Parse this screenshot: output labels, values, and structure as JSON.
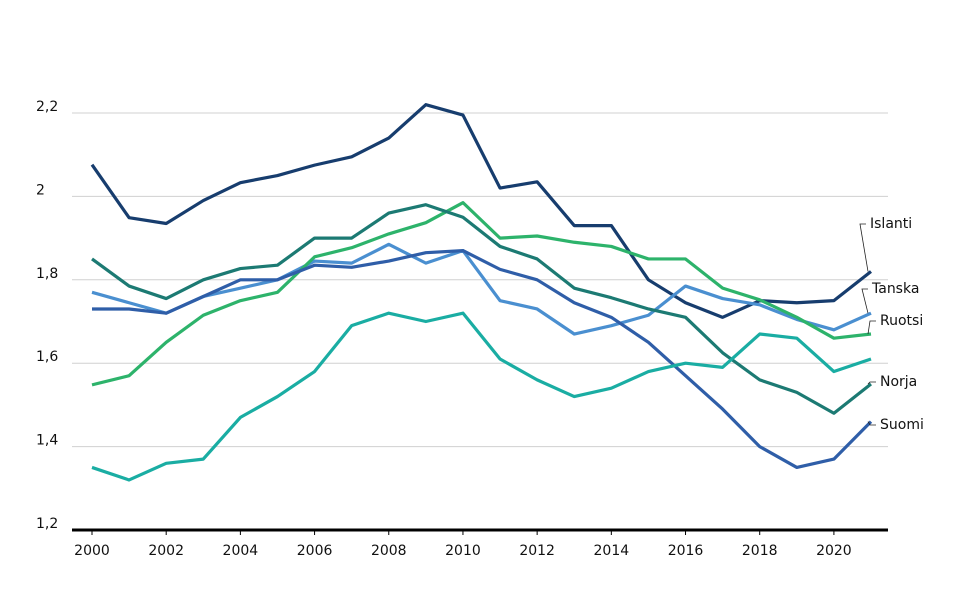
{
  "chart_data": {
    "type": "line",
    "x": [
      2000,
      2001,
      2002,
      2003,
      2004,
      2005,
      2006,
      2007,
      2008,
      2009,
      2010,
      2011,
      2012,
      2013,
      2014,
      2015,
      2016,
      2017,
      2018,
      2019,
      2020,
      2021
    ],
    "xlim": [
      2000,
      2021
    ],
    "xticks": [
      2000,
      2002,
      2004,
      2006,
      2008,
      2010,
      2012,
      2014,
      2016,
      2018,
      2020
    ],
    "ylim": [
      1.2,
      2.2
    ],
    "yticks": [
      {
        "value": 1.2,
        "label": "1,2"
      },
      {
        "value": 1.4,
        "label": "1,4"
      },
      {
        "value": 1.6,
        "label": "1,6"
      },
      {
        "value": 1.8,
        "label": "1,8"
      },
      2,
      {
        "value": 2.2,
        "label": "2,2"
      }
    ],
    "grid": true,
    "series": [
      {
        "name": "Islanti",
        "color": "#173d6e",
        "values": [
          2.076,
          1.949,
          1.935,
          1.99,
          2.033,
          2.05,
          2.075,
          2.095,
          2.14,
          2.22,
          2.195,
          2.02,
          2.035,
          1.93,
          1.93,
          1.8,
          1.745,
          1.71,
          1.75,
          1.745,
          1.75,
          1.82
        ]
      },
      {
        "name": "Tanska",
        "color": "#4a8fd0",
        "values": [
          1.77,
          1.745,
          1.72,
          1.76,
          1.78,
          1.8,
          1.845,
          1.84,
          1.885,
          1.84,
          1.87,
          1.75,
          1.73,
          1.67,
          1.69,
          1.715,
          1.785,
          1.755,
          1.74,
          1.705,
          1.68,
          1.72
        ]
      },
      {
        "name": "Ruotsi",
        "color": "#2db36b",
        "values": [
          1.548,
          1.57,
          1.65,
          1.715,
          1.75,
          1.77,
          1.855,
          1.877,
          1.91,
          1.937,
          1.985,
          1.9,
          1.905,
          1.89,
          1.88,
          1.85,
          1.85,
          1.78,
          1.752,
          1.71,
          1.66,
          1.67
        ]
      },
      {
        "name": "Norja",
        "color": "#1c7a73",
        "values": [
          1.85,
          1.785,
          1.755,
          1.8,
          1.827,
          1.835,
          1.9,
          1.9,
          1.96,
          1.98,
          1.95,
          1.88,
          1.85,
          1.78,
          1.757,
          1.73,
          1.71,
          1.625,
          1.56,
          1.53,
          1.48,
          1.55
        ]
      },
      {
        "name": "Suomi",
        "color": "#2f5ea8",
        "values": [
          1.73,
          1.73,
          1.72,
          1.76,
          1.8,
          1.8,
          1.835,
          1.83,
          1.845,
          1.865,
          1.87,
          1.825,
          1.8,
          1.745,
          1.71,
          1.65,
          1.57,
          1.49,
          1.4,
          1.35,
          1.37,
          1.46
        ]
      },
      {
        "color": "#1aada3",
        "values": [
          1.35,
          1.32,
          1.36,
          1.37,
          1.47,
          1.52,
          1.58,
          1.69,
          1.72,
          1.7,
          1.72,
          1.61,
          1.56,
          1.52,
          1.54,
          1.58,
          1.6,
          1.59,
          1.67,
          1.66,
          1.58,
          1.61
        ]
      }
    ]
  }
}
